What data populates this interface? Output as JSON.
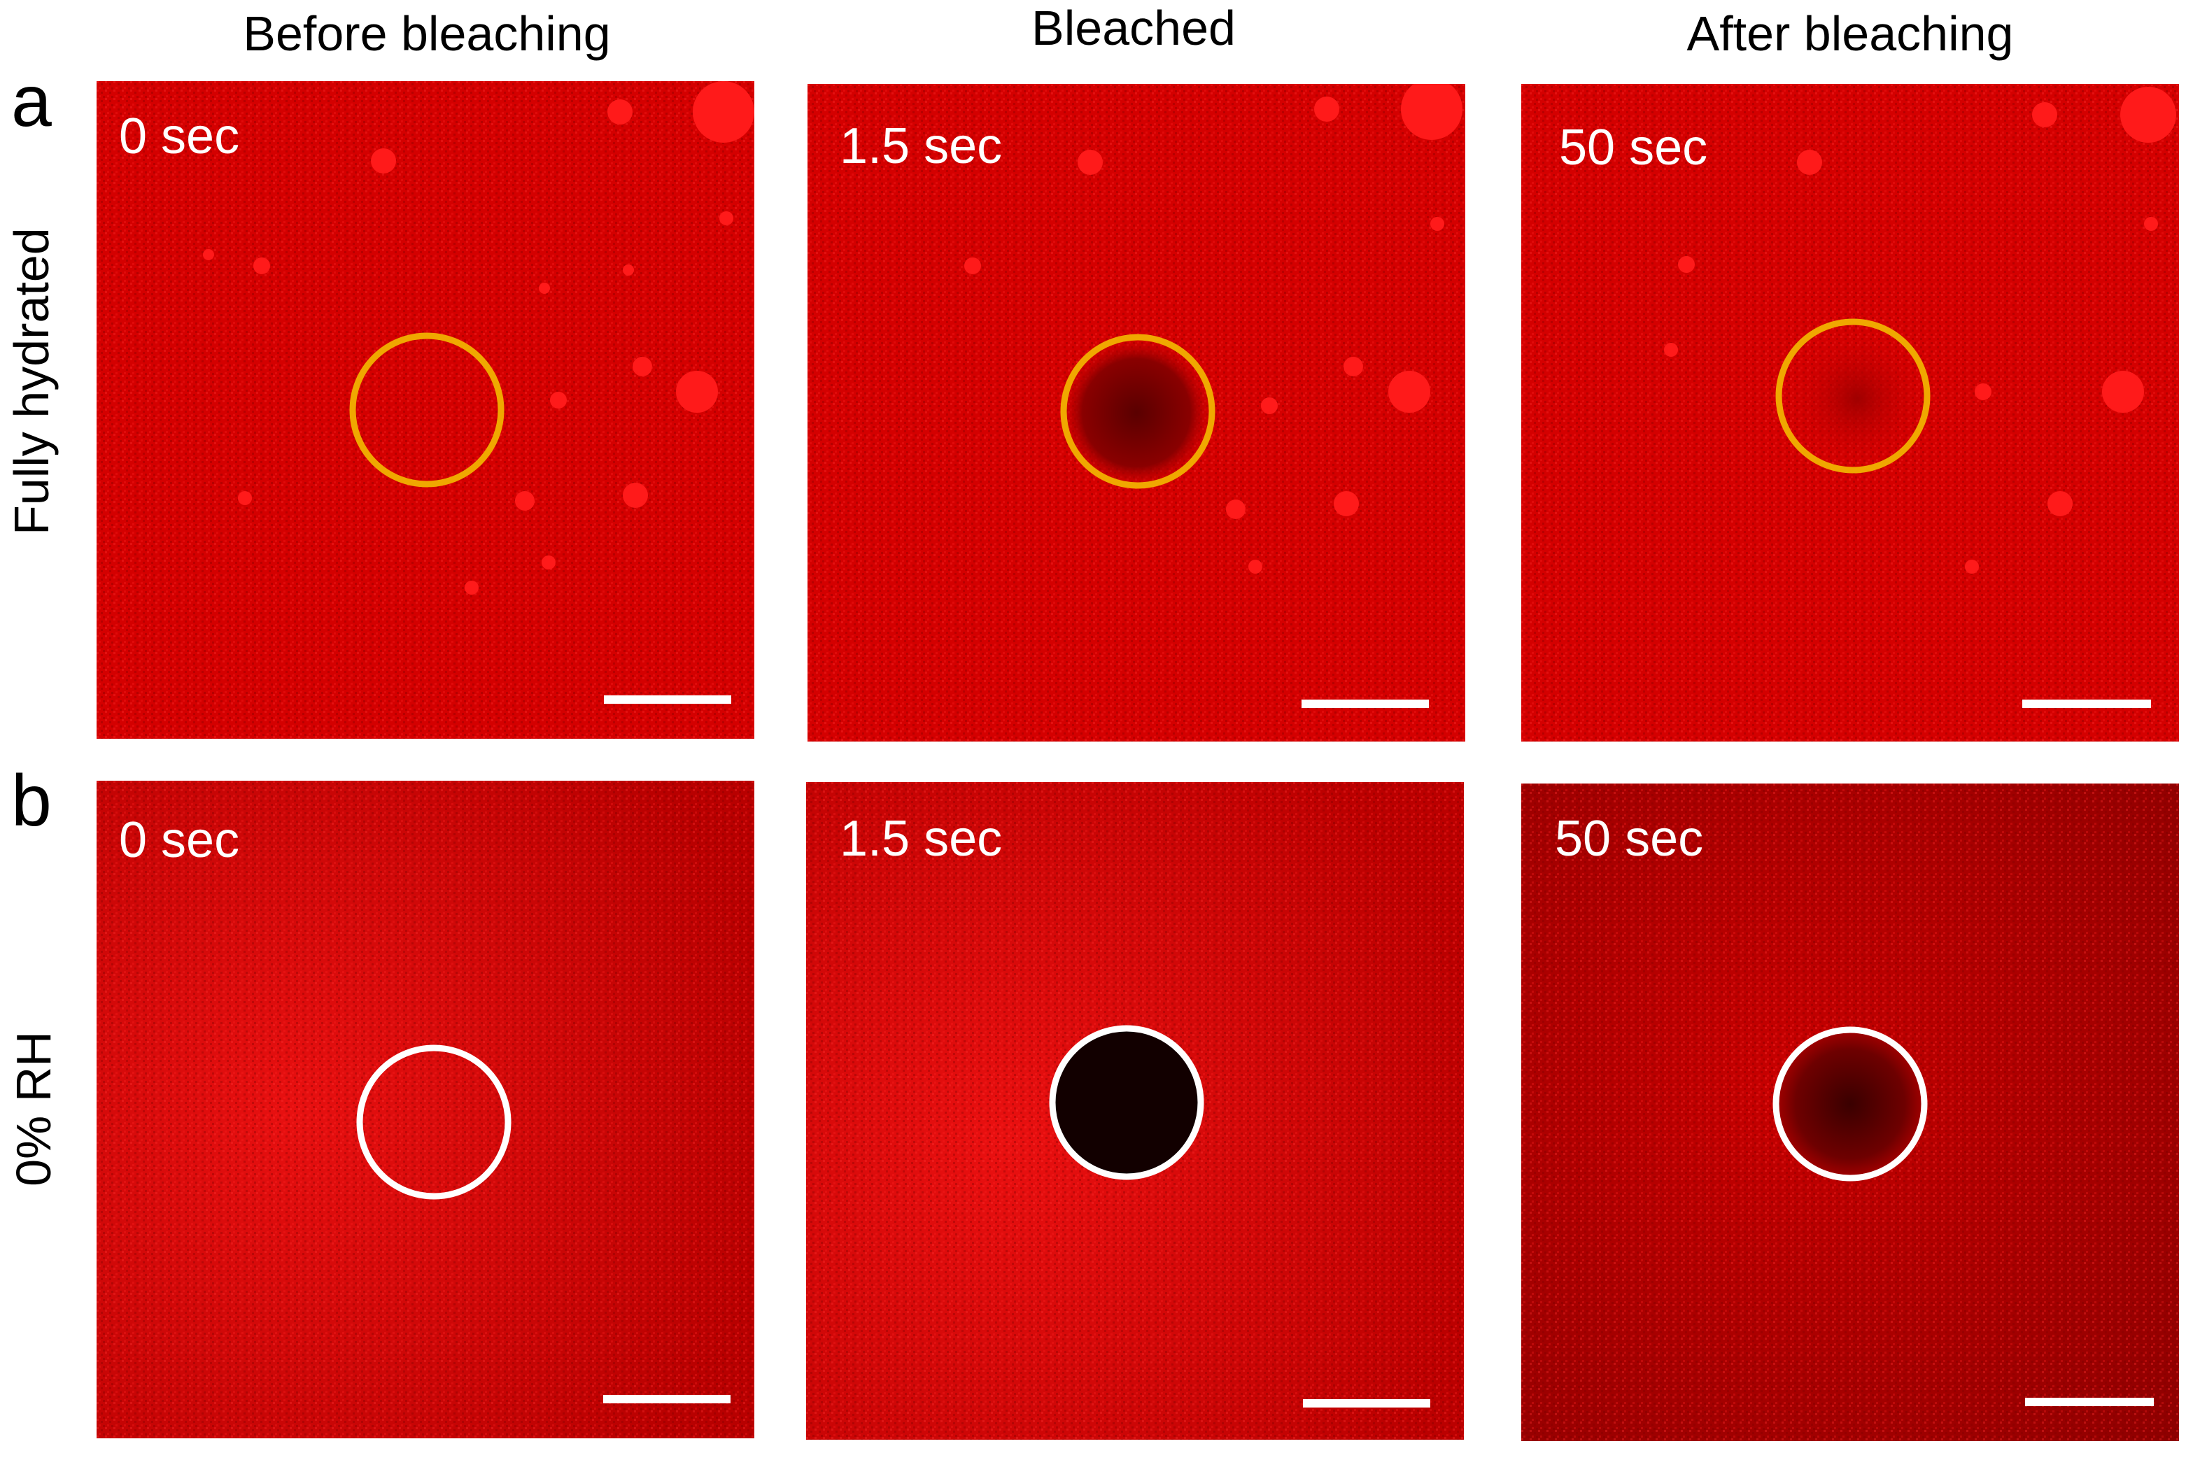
{
  "columns": {
    "before": "Before bleaching",
    "bleached": "Bleached",
    "after": "After bleaching"
  },
  "rows": {
    "a": {
      "label": "a",
      "title": "Fully hydrated",
      "times": [
        "0 sec",
        "1.5 sec",
        "50 sec"
      ],
      "circle_color": "#f0a800"
    },
    "b": {
      "label": "b",
      "title": "0% RH",
      "times": [
        "0 sec",
        "1.5 sec",
        "50 sec"
      ],
      "circle_color": "#ffffff"
    }
  },
  "colors": {
    "fluorescence": "#e60000",
    "background": "#ffffff"
  }
}
